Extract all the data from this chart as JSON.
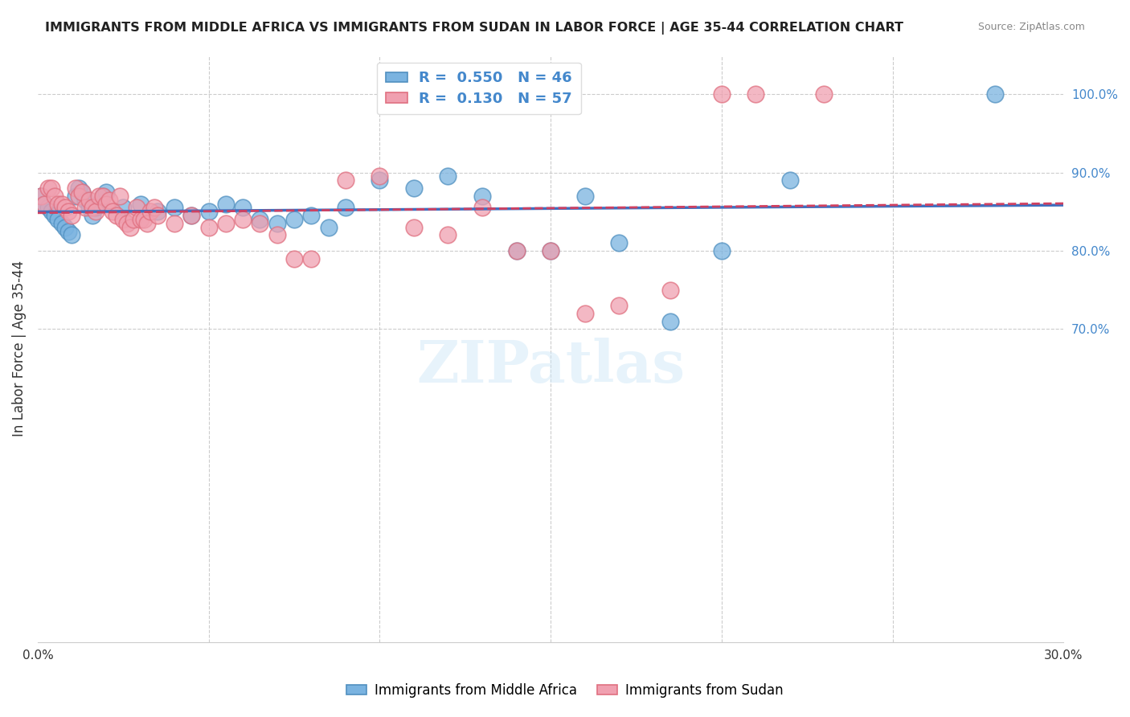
{
  "title": "IMMIGRANTS FROM MIDDLE AFRICA VS IMMIGRANTS FROM SUDAN IN LABOR FORCE | AGE 35-44 CORRELATION CHART",
  "source": "Source: ZipAtlas.com",
  "xlabel": "",
  "ylabel": "In Labor Force | Age 35-44",
  "xlim": [
    0.0,
    0.3
  ],
  "ylim": [
    0.3,
    1.05
  ],
  "xticks": [
    0.0,
    0.05,
    0.1,
    0.15,
    0.2,
    0.25,
    0.3
  ],
  "xtick_labels": [
    "0.0%",
    "",
    "",
    "",
    "",
    "",
    "30.0%"
  ],
  "yticks_right": [
    0.7,
    0.8,
    0.9,
    1.0
  ],
  "ytick_labels_right": [
    "70.0%",
    "80.0%",
    "90.0%",
    "100.0%"
  ],
  "blue_color": "#7ab3e0",
  "pink_color": "#f0a0b0",
  "blue_edge": "#5090c0",
  "pink_edge": "#e07080",
  "trend_blue": "#4070c0",
  "trend_pink": "#d04060",
  "R_blue": 0.55,
  "N_blue": 46,
  "R_pink": 0.13,
  "N_pink": 57,
  "legend_text_blue": "R =  0.550   N = 46",
  "legend_text_pink": "R =  0.130   N = 57",
  "watermark": "ZIPatlas",
  "blue_scatter_x": [
    0.001,
    0.002,
    0.003,
    0.004,
    0.005,
    0.006,
    0.007,
    0.008,
    0.009,
    0.01,
    0.011,
    0.012,
    0.013,
    0.014,
    0.015,
    0.016,
    0.017,
    0.018,
    0.019,
    0.02,
    0.025,
    0.03,
    0.035,
    0.04,
    0.045,
    0.05,
    0.055,
    0.06,
    0.065,
    0.07,
    0.075,
    0.08,
    0.085,
    0.09,
    0.1,
    0.11,
    0.12,
    0.13,
    0.14,
    0.15,
    0.16,
    0.17,
    0.185,
    0.2,
    0.22,
    0.28
  ],
  "blue_scatter_y": [
    0.87,
    0.86,
    0.855,
    0.85,
    0.845,
    0.84,
    0.835,
    0.83,
    0.825,
    0.82,
    0.87,
    0.88,
    0.875,
    0.865,
    0.855,
    0.845,
    0.855,
    0.86,
    0.87,
    0.875,
    0.855,
    0.86,
    0.85,
    0.855,
    0.845,
    0.85,
    0.86,
    0.855,
    0.84,
    0.835,
    0.84,
    0.845,
    0.83,
    0.855,
    0.89,
    0.88,
    0.895,
    0.87,
    0.8,
    0.8,
    0.87,
    0.81,
    0.71,
    0.8,
    0.89,
    1.0
  ],
  "pink_scatter_x": [
    0.001,
    0.002,
    0.003,
    0.004,
    0.005,
    0.006,
    0.007,
    0.008,
    0.009,
    0.01,
    0.011,
    0.012,
    0.013,
    0.014,
    0.015,
    0.016,
    0.017,
    0.018,
    0.019,
    0.02,
    0.021,
    0.022,
    0.023,
    0.024,
    0.025,
    0.026,
    0.027,
    0.028,
    0.029,
    0.03,
    0.031,
    0.032,
    0.033,
    0.034,
    0.035,
    0.04,
    0.045,
    0.05,
    0.055,
    0.06,
    0.065,
    0.07,
    0.075,
    0.08,
    0.09,
    0.1,
    0.11,
    0.12,
    0.13,
    0.14,
    0.15,
    0.16,
    0.17,
    0.185,
    0.2,
    0.21,
    0.23
  ],
  "pink_scatter_y": [
    0.87,
    0.86,
    0.88,
    0.88,
    0.87,
    0.86,
    0.86,
    0.855,
    0.85,
    0.845,
    0.88,
    0.87,
    0.875,
    0.855,
    0.865,
    0.855,
    0.85,
    0.87,
    0.87,
    0.86,
    0.865,
    0.85,
    0.845,
    0.87,
    0.84,
    0.835,
    0.83,
    0.84,
    0.855,
    0.84,
    0.84,
    0.835,
    0.85,
    0.855,
    0.845,
    0.835,
    0.845,
    0.83,
    0.835,
    0.84,
    0.835,
    0.82,
    0.79,
    0.79,
    0.89,
    0.895,
    0.83,
    0.82,
    0.855,
    0.8,
    0.8,
    0.72,
    0.73,
    0.75,
    1.0,
    1.0,
    1.0
  ]
}
